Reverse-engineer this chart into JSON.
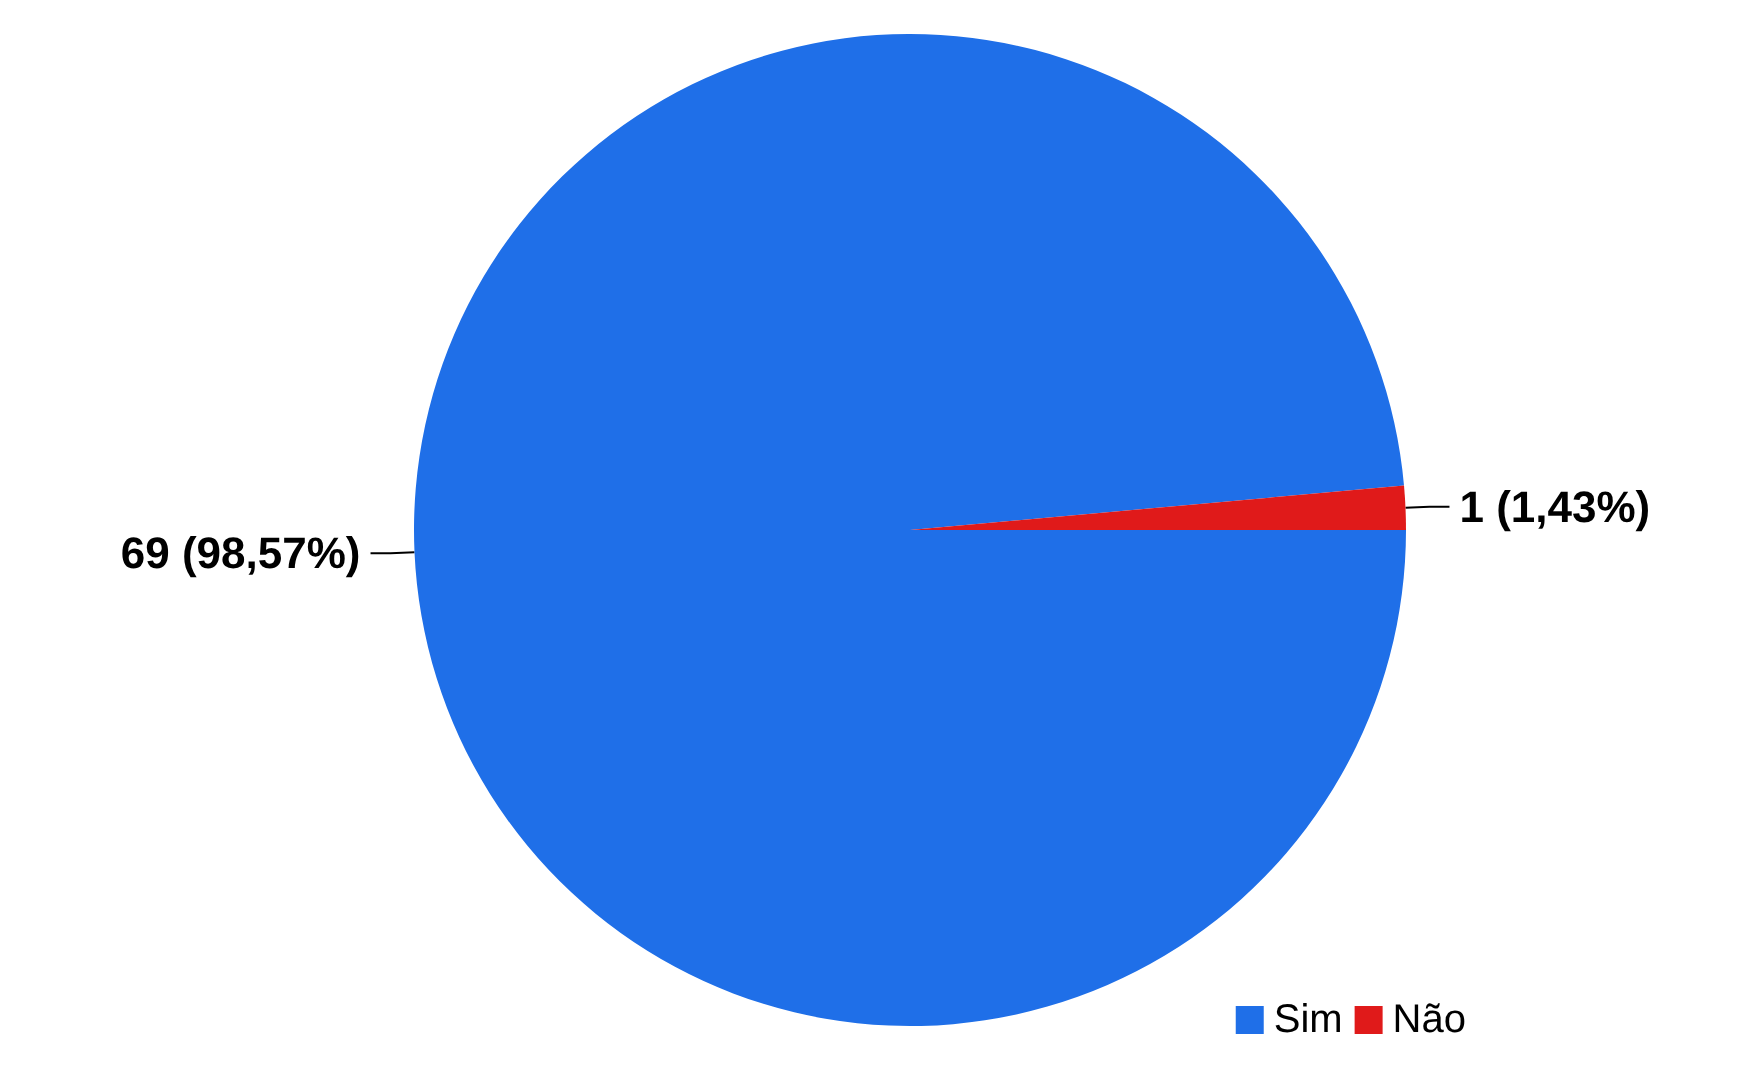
{
  "chart_data": {
    "type": "pie",
    "categories": [
      "Sim",
      "Não"
    ],
    "values": [
      69,
      1
    ],
    "colors": [
      "#1f6fe8",
      "#e01a1a"
    ],
    "value_labels": [
      "69 (98,57%)",
      "1 (1,43%)"
    ],
    "legend": "bottom right"
  }
}
